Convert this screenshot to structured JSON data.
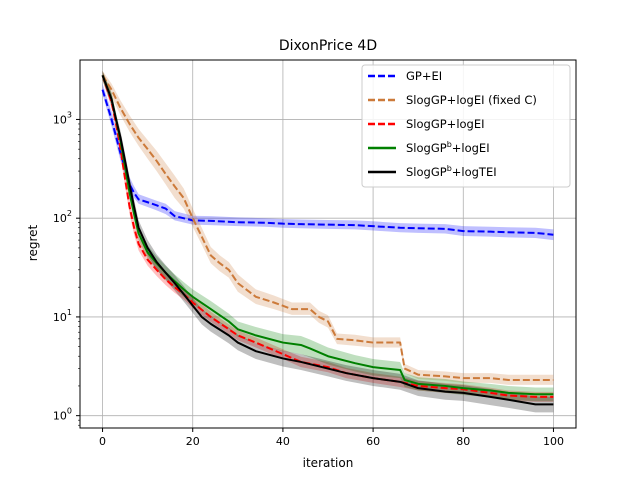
{
  "chart_data": {
    "type": "line",
    "title": "DixonPrice 4D",
    "xlabel": "iteration",
    "ylabel": "regret",
    "yscale": "log",
    "xlim": [
      -5,
      105
    ],
    "ylim": [
      0.75,
      4000
    ],
    "grid": true,
    "legend": "upper-right",
    "xticks": [
      0,
      20,
      40,
      60,
      80,
      100
    ],
    "xtick_labels": [
      "0",
      "20",
      "40",
      "60",
      "80",
      "100"
    ],
    "yticks": [
      1,
      10,
      100,
      1000
    ],
    "ytick_labels": [
      {
        "base": "10",
        "exp": "0"
      },
      {
        "base": "10",
        "exp": "1"
      },
      {
        "base": "10",
        "exp": "2"
      },
      {
        "base": "10",
        "exp": "3"
      }
    ],
    "series": [
      {
        "name": "GP+EI",
        "color": "#0000ff",
        "dash": "dashed",
        "x": [
          0,
          2,
          4,
          5,
          6,
          7,
          8,
          10,
          12,
          14,
          16,
          20,
          24,
          30,
          36,
          40,
          44,
          50,
          56,
          60,
          66,
          70,
          76,
          80,
          86,
          90,
          96,
          100
        ],
        "y": [
          2000,
          1000,
          450,
          320,
          220,
          180,
          155,
          145,
          135,
          125,
          105,
          95,
          94,
          91,
          90,
          88,
          87,
          86,
          85,
          83,
          80,
          79,
          78,
          74,
          73,
          72,
          71,
          68
        ],
        "lo": [
          1800,
          850,
          380,
          270,
          190,
          160,
          140,
          130,
          120,
          110,
          95,
          86,
          85,
          83,
          82,
          80,
          79,
          78,
          77,
          75,
          72,
          71,
          70,
          66,
          65,
          64,
          63,
          60
        ],
        "hi": [
          2300,
          1200,
          530,
          380,
          260,
          210,
          175,
          162,
          150,
          140,
          118,
          106,
          105,
          102,
          100,
          98,
          97,
          96,
          95,
          93,
          89,
          88,
          87,
          83,
          82,
          81,
          80,
          77
        ]
      },
      {
        "name": "SlogGP+logEI (fixed C)",
        "color": "#cc7a3a",
        "dash": "dashed",
        "x": [
          0,
          2,
          4,
          6,
          8,
          10,
          12,
          14,
          16,
          18,
          20,
          22,
          24,
          26,
          28,
          30,
          34,
          38,
          42,
          46,
          48,
          50,
          52,
          56,
          60,
          62,
          66,
          67,
          70,
          76,
          80,
          86,
          90,
          96,
          100
        ],
        "y": [
          2800,
          2000,
          1300,
          900,
          650,
          500,
          380,
          280,
          210,
          160,
          100,
          65,
          42,
          35,
          30,
          22,
          16,
          14,
          12,
          12,
          10,
          9,
          6,
          5.8,
          5.5,
          5.5,
          5.5,
          3,
          2.6,
          2.5,
          2.4,
          2.4,
          2.3,
          2.3,
          2.3
        ],
        "lo": [
          2500,
          1700,
          1100,
          750,
          540,
          400,
          300,
          220,
          160,
          125,
          82,
          54,
          35,
          29,
          25,
          18,
          13.5,
          12,
          10.5,
          10.5,
          8.7,
          7.8,
          5.3,
          5.1,
          4.9,
          4.9,
          4.9,
          2.7,
          2.35,
          2.25,
          2.15,
          2.15,
          2.05,
          2.05,
          2.05
        ],
        "hi": [
          3100,
          2300,
          1550,
          1100,
          800,
          620,
          480,
          360,
          270,
          200,
          125,
          80,
          51,
          42,
          36,
          27,
          19,
          16.5,
          14,
          14,
          11.5,
          10.4,
          6.8,
          6.6,
          6.2,
          6.2,
          6.2,
          3.35,
          2.9,
          2.8,
          2.7,
          2.7,
          2.6,
          2.6,
          2.6
        ]
      },
      {
        "name": "SlogGP+logEI",
        "color": "#ff0000",
        "dash": "dashed",
        "x": [
          0,
          2,
          3,
          4,
          5,
          6,
          7,
          8,
          10,
          12,
          14,
          16,
          18,
          20,
          24,
          28,
          30,
          34,
          40,
          44,
          50,
          54,
          60,
          66,
          70,
          76,
          80,
          86,
          90,
          96,
          100
        ],
        "y": [
          2800,
          1500,
          900,
          500,
          250,
          130,
          80,
          55,
          38,
          30,
          24,
          20,
          17,
          14,
          10,
          7.5,
          6.5,
          5.5,
          4.2,
          3.5,
          3.1,
          2.7,
          2.4,
          2.2,
          2,
          1.9,
          1.85,
          1.7,
          1.6,
          1.55,
          1.55
        ],
        "lo": [
          2500,
          1300,
          780,
          430,
          210,
          110,
          68,
          47,
          33,
          26,
          21,
          17.5,
          15,
          12.3,
          8.9,
          6.7,
          5.8,
          4.9,
          3.75,
          3.1,
          2.75,
          2.4,
          2.15,
          1.95,
          1.8,
          1.7,
          1.65,
          1.52,
          1.43,
          1.38,
          1.38
        ],
        "hi": [
          3100,
          1750,
          1050,
          580,
          300,
          155,
          95,
          65,
          44,
          34.5,
          27.5,
          23,
          19.5,
          16,
          11.3,
          8.4,
          7.3,
          6.2,
          4.7,
          3.95,
          3.5,
          3.05,
          2.7,
          2.48,
          2.25,
          2.14,
          2.08,
          1.92,
          1.8,
          1.74,
          1.74
        ]
      },
      {
        "name": "SlogGP<sup>b</sup>+logEI",
        "color": "#008000",
        "dash": "solid",
        "x": [
          0,
          2,
          3,
          4,
          5,
          6,
          7,
          8,
          10,
          12,
          14,
          16,
          18,
          20,
          24,
          28,
          30,
          34,
          40,
          44,
          46,
          50,
          56,
          60,
          66,
          67,
          70,
          76,
          80,
          86,
          90,
          96,
          100
        ],
        "y": [
          2800,
          1600,
          1000,
          600,
          330,
          180,
          110,
          70,
          45,
          35,
          28,
          23,
          19,
          16,
          12,
          9,
          7.5,
          6.5,
          5.5,
          5.2,
          4.8,
          4.0,
          3.4,
          3.1,
          2.9,
          2.3,
          2.1,
          2.0,
          1.9,
          1.8,
          1.7,
          1.65,
          1.65
        ],
        "lo": [
          2500,
          1400,
          870,
          520,
          280,
          155,
          95,
          60,
          39,
          30,
          24,
          19.5,
          16,
          13.5,
          10,
          7.6,
          6.3,
          5.4,
          4.5,
          4.2,
          3.9,
          3.3,
          2.8,
          2.55,
          2.4,
          1.95,
          1.8,
          1.7,
          1.62,
          1.53,
          1.45,
          1.4,
          1.4
        ],
        "hi": [
          3100,
          1850,
          1150,
          700,
          390,
          210,
          130,
          82,
          53,
          41,
          33,
          27,
          22.5,
          19,
          14.5,
          10.8,
          9,
          7.9,
          6.7,
          6.4,
          5.9,
          4.9,
          4.1,
          3.75,
          3.5,
          2.7,
          2.45,
          2.35,
          2.22,
          2.1,
          2.0,
          1.93,
          1.93
        ]
      },
      {
        "name": "SlogGP<sup>b</sup>+logTEI",
        "color": "#000000",
        "dash": "solid",
        "x": [
          0,
          2,
          3,
          4,
          5,
          6,
          7,
          8,
          10,
          12,
          14,
          16,
          18,
          20,
          22,
          24,
          28,
          30,
          34,
          40,
          44,
          50,
          54,
          60,
          66,
          70,
          76,
          80,
          86,
          90,
          96,
          100
        ],
        "y": [
          2800,
          1600,
          1000,
          650,
          380,
          220,
          130,
          80,
          50,
          36,
          28,
          22,
          17,
          13,
          10,
          8.5,
          6.5,
          5.5,
          4.5,
          3.8,
          3.5,
          3.0,
          2.7,
          2.4,
          2.2,
          1.9,
          1.75,
          1.7,
          1.55,
          1.45,
          1.3,
          1.3
        ],
        "lo": [
          2500,
          1400,
          870,
          560,
          320,
          185,
          110,
          67,
          42,
          30,
          23.5,
          18.5,
          14.3,
          11,
          8.4,
          7.1,
          5.4,
          4.6,
          3.75,
          3.15,
          2.9,
          2.5,
          2.25,
          2.0,
          1.83,
          1.58,
          1.45,
          1.41,
          1.28,
          1.2,
          1.08,
          1.08
        ],
        "hi": [
          3100,
          1850,
          1150,
          760,
          450,
          260,
          155,
          95,
          60,
          43,
          33.5,
          26.5,
          20.5,
          15.5,
          12,
          10.2,
          7.8,
          6.6,
          5.4,
          4.55,
          4.2,
          3.6,
          3.25,
          2.9,
          2.65,
          2.28,
          2.1,
          2.04,
          1.86,
          1.74,
          1.56,
          1.56
        ]
      }
    ]
  }
}
